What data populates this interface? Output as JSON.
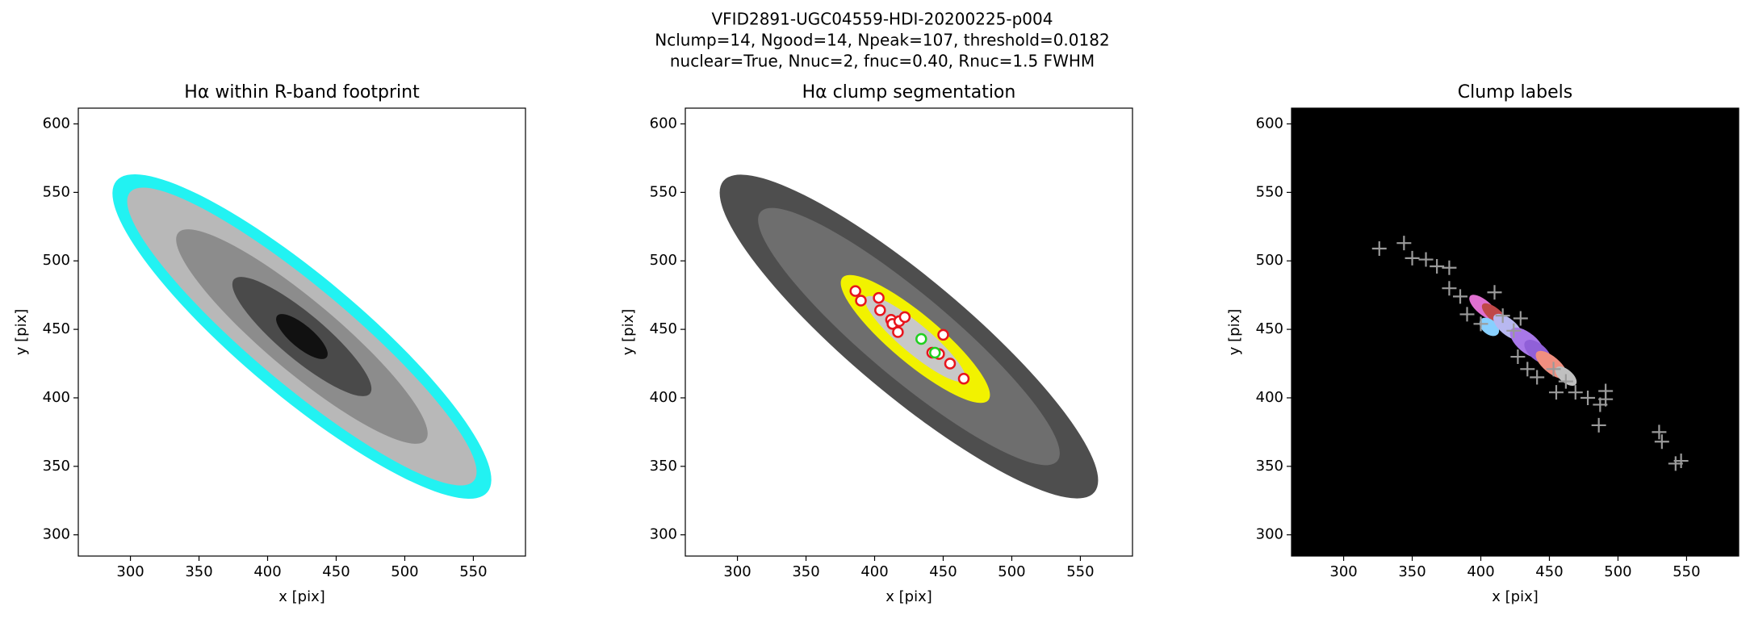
{
  "figure_title": [
    "VFID2891-UGC04559-HDI-20200225-p004",
    "Nclump=14, Ngood=14, Npeak=107, threshold=0.0182",
    "nuclear=True, Nnuc=2, fnuc=0.40, Rnuc=1.5 FWHM"
  ],
  "chart_data": [
    {
      "type": "image",
      "title": "Hα within R-band footprint",
      "xlabel": "x [pix]",
      "ylabel": "y [pix]",
      "xlim": [
        262,
        588
      ],
      "ylim": [
        284.5,
        611.5
      ],
      "xticks": [
        300,
        350,
        400,
        450,
        500,
        550
      ],
      "yticks": [
        300,
        350,
        400,
        450,
        500,
        550,
        600
      ]
    },
    {
      "type": "scatter",
      "title": "Hα clump segmentation",
      "xlabel": "x [pix]",
      "ylabel": "y [pix]",
      "xlim": [
        262,
        588
      ],
      "ylim": [
        284.5,
        611.5
      ],
      "xticks": [
        300,
        350,
        400,
        450,
        500,
        550
      ],
      "yticks": [
        300,
        350,
        400,
        450,
        500,
        550,
        600
      ],
      "series": [
        {
          "color": "#e8141c",
          "marker": "o",
          "x": [
            386,
            390,
            403,
            404,
            412,
            413,
            418,
            422,
            417,
            450,
            442,
            447,
            455,
            465
          ],
          "values": [
            478,
            471,
            473,
            464,
            457,
            454,
            456,
            459,
            448,
            446,
            433,
            432,
            425,
            414
          ]
        },
        {
          "color": "#1fd01f",
          "marker": "o",
          "x": [
            434,
            444
          ],
          "values": [
            443,
            433
          ]
        }
      ]
    },
    {
      "type": "scatter",
      "title": "Clump labels",
      "xlabel": "x [pix]",
      "ylabel": "y [pix]",
      "facecolor": "#000000",
      "xlim": [
        262,
        588
      ],
      "ylim": [
        284.5,
        611.5
      ],
      "xticks": [
        300,
        350,
        400,
        450,
        500,
        550
      ],
      "yticks": [
        300,
        350,
        400,
        450,
        500,
        550,
        600
      ],
      "series": [
        {
          "color": "#9a9a9a",
          "marker": "+",
          "x": [
            326,
            344,
            350,
            360,
            368,
            377,
            377,
            385,
            390,
            400,
            410,
            416,
            424,
            429,
            427,
            434,
            441,
            453,
            462,
            469,
            478,
            487,
            491,
            486,
            530,
            532,
            542,
            546,
            455,
            491
          ],
          "values": [
            509,
            513,
            502,
            501,
            496,
            495,
            480,
            474,
            461,
            454,
            477,
            460,
            449,
            458,
            430,
            421,
            415,
            421,
            412,
            404,
            400,
            395,
            399,
            380,
            375,
            368,
            352,
            354,
            404,
            405
          ]
        }
      ]
    }
  ]
}
